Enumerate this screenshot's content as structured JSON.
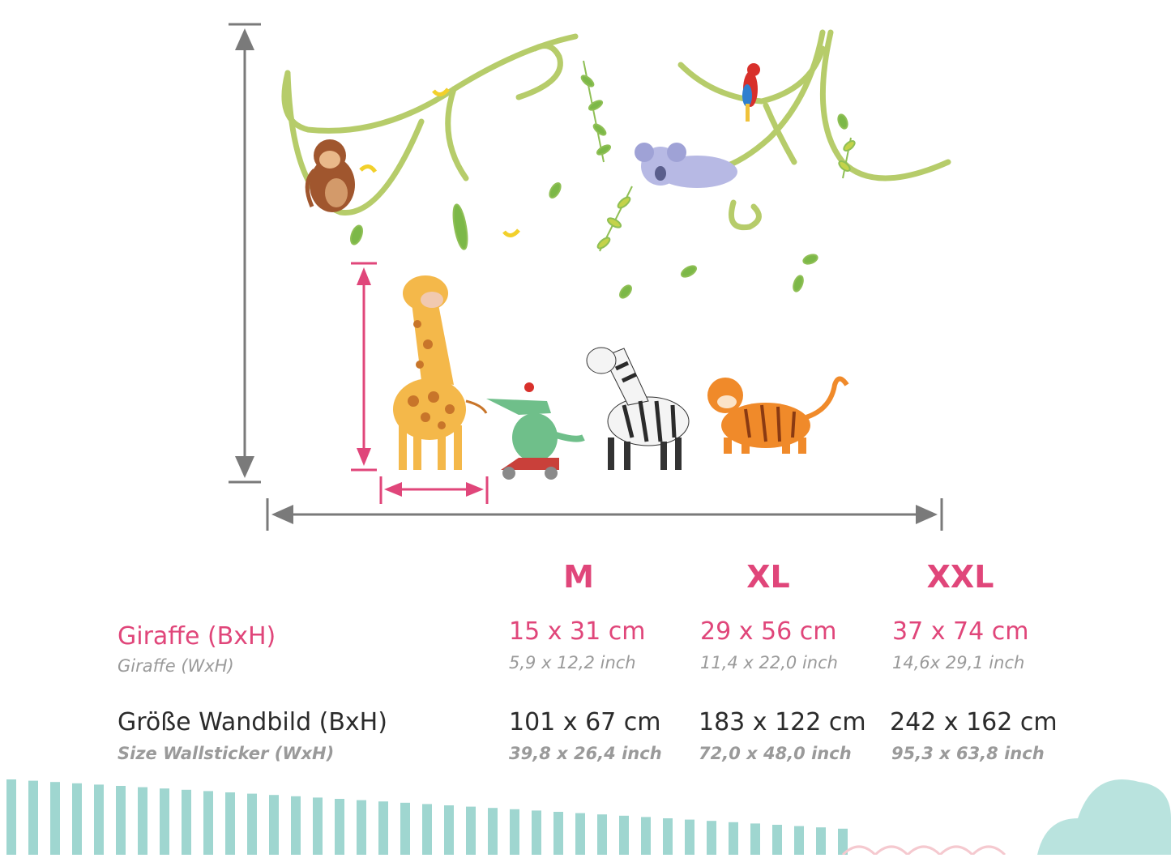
{
  "table": {
    "sizes": [
      "M",
      "XL",
      "XXL"
    ],
    "giraffe": {
      "label_de": "Giraffe (BxH)",
      "label_en": "Giraffe (WxH)",
      "cm": [
        "15 x 31 cm",
        "29 x 56 cm",
        "37 x 74 cm"
      ],
      "inch": [
        "5,9 x 12,2 inch",
        "11,4 x 22,0 inch",
        "14,6x 29,1 inch"
      ]
    },
    "wall": {
      "label_de": "Größe Wandbild (BxH)",
      "label_en": "Size Wallsticker (WxH)",
      "cm": [
        "101 x 67 cm",
        "183 x 122 cm",
        "242 x 162 cm"
      ],
      "inch": [
        "39,8 x 26,4 inch",
        "72,0 x 48,0 inch",
        "95,3 x 63,8 inch"
      ]
    }
  },
  "colors": {
    "accent_pink": "#e0467a",
    "arrow_gray": "#7a7a7a",
    "stripe_teal": "#9fd6d0",
    "vine_green": "#a8c860"
  },
  "illustration_icons": [
    "monkey-icon",
    "parrot-icon",
    "koala-icon",
    "giraffe-icon",
    "crocodile-icon",
    "zebra-icon",
    "tiger-icon",
    "banana-icon",
    "leaf-icon"
  ]
}
